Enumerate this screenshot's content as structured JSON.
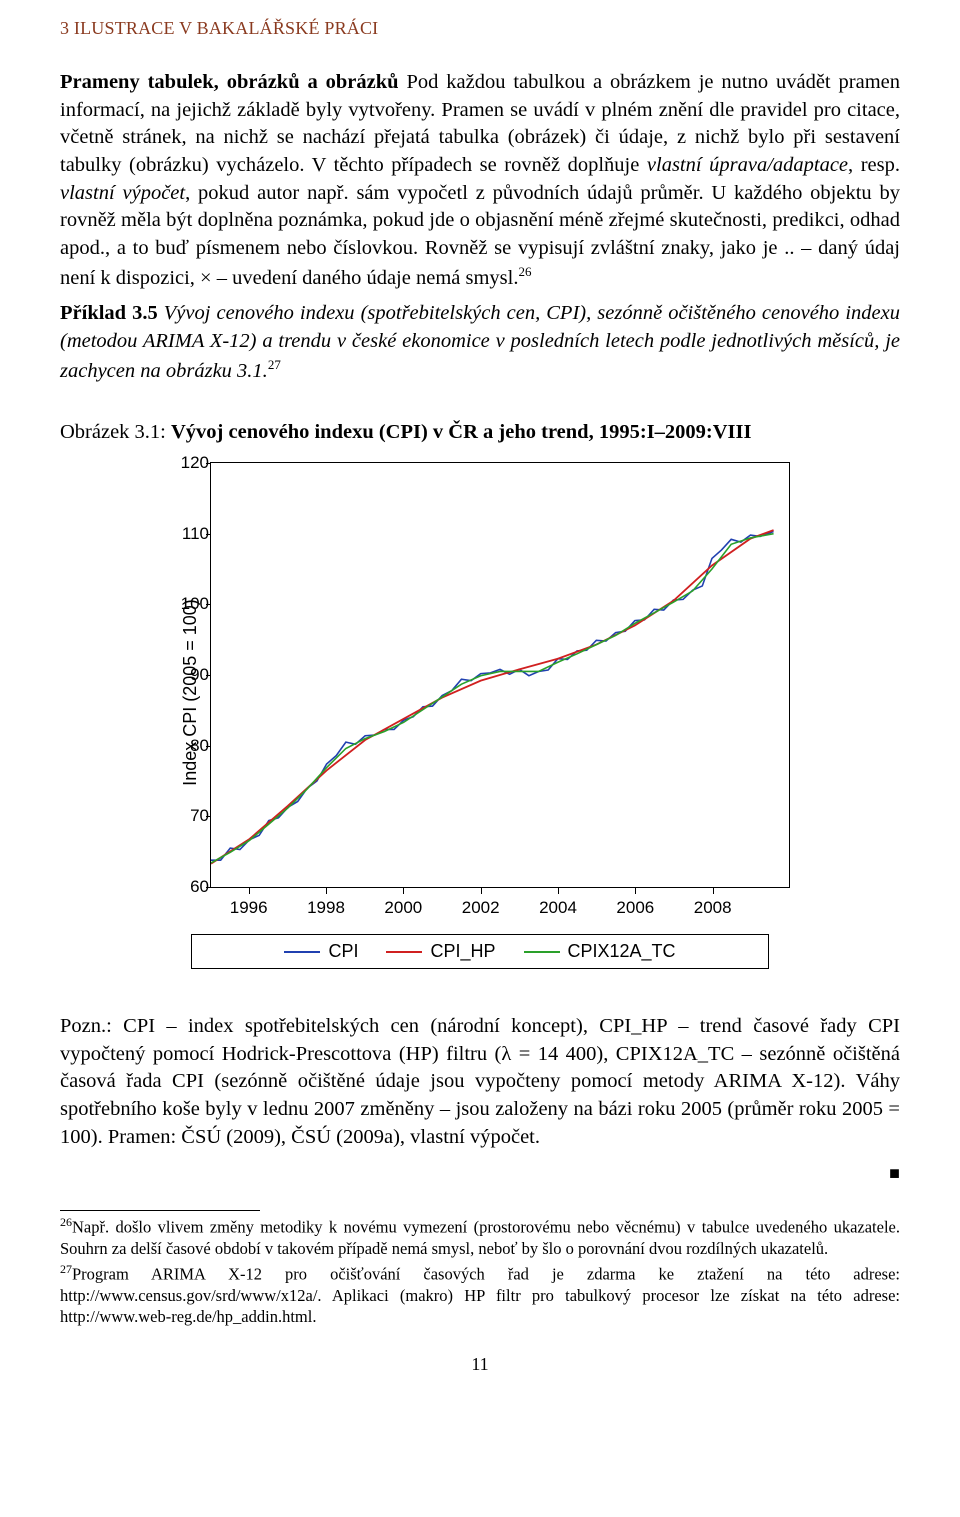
{
  "header": "3   ILUSTRACE V BAKALÁŘSKÉ PRÁCI",
  "para1": {
    "lead": "Prameny tabulek, obrázků a obrázků",
    "body1": "   Pod každou tabulkou a obrázkem je nutno uvádět pramen informací, na jejichž základě byly vytvořeny. Pramen se uvádí v plném znění dle pravidel pro citace, včetně stránek, na nichž se nachází přejatá tabulka (obrázek) či údaje, z nichž bylo při sestavení tabulky (obrázku) vycházelo. V těchto případech se rovněž doplňuje ",
    "i1": "vlastní úprava/adaptace",
    "body2": ", resp. ",
    "i2": "vlastní výpočet",
    "body3": ", pokud autor např. sám vypočetl z původních údajů průměr. U každého objektu by rovněž měla být doplněna poznámka, pokud jde o objasnění méně zřejmé skutečnosti, predikci, odhad apod., a to buď písmenem nebo číslovkou. Rovněž se vypisují zvláštní znaky, jako je .. – daný údaj není k dispozici, × – uvedení daného údaje nemá smysl.",
    "sup26": "26"
  },
  "priklad": {
    "lead": "Příklad 3.5",
    "body": " Vývoj cenového indexu (spotřebitelských cen, CPI), sezónně očištěného cenového indexu (metodou ARIMA X-12) a trendu v české ekonomice v posledních letech podle jednotlivých měsíců, je zachycen na obrázku 3.1.",
    "sup27": "27"
  },
  "figcap": {
    "pre": "Obrázek 3.1: ",
    "bold": "Vývoj cenového indexu (CPI) v ČR a jeho trend, 1995:I–2009:VIII"
  },
  "chart": {
    "ylabel": "Index CPI (2005 = 100)",
    "ylim": [
      60,
      120
    ],
    "ytick_step": 10,
    "yticks": [
      60,
      70,
      80,
      90,
      100,
      110,
      120
    ],
    "xlim": [
      1995,
      2010
    ],
    "xticks": [
      1996,
      1998,
      2000,
      2002,
      2004,
      2006,
      2008
    ],
    "series": [
      {
        "name": "CPI",
        "color": "#2040b0"
      },
      {
        "name": "CPI_HP",
        "color": "#d02020"
      },
      {
        "name": "CPIX12A_TC",
        "color": "#2aa02a"
      }
    ],
    "cpi": [
      [
        1995.0,
        63.5
      ],
      [
        1995.25,
        64.2
      ],
      [
        1995.5,
        65.0
      ],
      [
        1995.75,
        65.6
      ],
      [
        1996.0,
        66.5
      ],
      [
        1996.25,
        67.8
      ],
      [
        1996.5,
        69.0
      ],
      [
        1996.75,
        70.0
      ],
      [
        1997.0,
        71.0
      ],
      [
        1997.25,
        72.5
      ],
      [
        1997.5,
        73.8
      ],
      [
        1997.75,
        75.3
      ],
      [
        1998.0,
        77.0
      ],
      [
        1998.25,
        78.8
      ],
      [
        1998.5,
        80.0
      ],
      [
        1998.75,
        80.6
      ],
      [
        1999.0,
        81.2
      ],
      [
        1999.25,
        81.8
      ],
      [
        1999.5,
        82.0
      ],
      [
        1999.75,
        82.5
      ],
      [
        2000.0,
        83.2
      ],
      [
        2000.25,
        84.4
      ],
      [
        2000.5,
        85.3
      ],
      [
        2000.75,
        86.0
      ],
      [
        2001.0,
        86.8
      ],
      [
        2001.25,
        88.0
      ],
      [
        2001.5,
        89.0
      ],
      [
        2001.75,
        89.5
      ],
      [
        2002.0,
        90.0
      ],
      [
        2002.25,
        90.8
      ],
      [
        2002.5,
        90.5
      ],
      [
        2002.75,
        90.3
      ],
      [
        2003.0,
        90.4
      ],
      [
        2003.25,
        90.2
      ],
      [
        2003.5,
        90.3
      ],
      [
        2003.75,
        90.9
      ],
      [
        2004.0,
        92.0
      ],
      [
        2004.25,
        92.6
      ],
      [
        2004.5,
        93.2
      ],
      [
        2004.75,
        93.8
      ],
      [
        2005.0,
        94.5
      ],
      [
        2005.25,
        95.0
      ],
      [
        2005.5,
        95.7
      ],
      [
        2005.75,
        96.5
      ],
      [
        2006.0,
        97.5
      ],
      [
        2006.25,
        98.2
      ],
      [
        2006.5,
        99.0
      ],
      [
        2006.75,
        99.4
      ],
      [
        2007.0,
        100.2
      ],
      [
        2007.25,
        101.0
      ],
      [
        2007.5,
        101.8
      ],
      [
        2007.75,
        103.0
      ],
      [
        2008.0,
        106.0
      ],
      [
        2008.25,
        108.0
      ],
      [
        2008.5,
        109.0
      ],
      [
        2008.75,
        109.2
      ],
      [
        2009.0,
        109.5
      ],
      [
        2009.25,
        109.8
      ],
      [
        2009.6,
        110.0
      ]
    ],
    "cpi_jitter": [
      0.3,
      -0.4,
      0.5,
      -0.3,
      0.2,
      -0.5,
      0.4,
      -0.2,
      0.3,
      -0.4,
      0.2,
      -0.3,
      0.4,
      -0.2,
      0.5,
      -0.4,
      0.2,
      -0.3,
      0.3,
      -0.2,
      0.4,
      -0.3,
      0.2,
      -0.4,
      0.3,
      -0.2,
      0.4,
      -0.3,
      0.2,
      -0.5,
      0.3,
      -0.2,
      0.4,
      -0.3,
      0.2,
      -0.2,
      0.3,
      -0.4,
      0.2,
      -0.3,
      0.4,
      -0.2,
      0.3,
      -0.3,
      0.2,
      -0.4,
      0.3,
      -0.2,
      0.4,
      -0.3,
      0.2,
      -0.4,
      0.5,
      -0.3,
      0.2,
      -0.4,
      0.3,
      -0.2,
      0.3
    ],
    "hp": [
      [
        1995.0,
        63.3
      ],
      [
        1996.0,
        66.8
      ],
      [
        1997.0,
        71.5
      ],
      [
        1998.0,
        76.5
      ],
      [
        1999.0,
        80.8
      ],
      [
        2000.0,
        83.8
      ],
      [
        2001.0,
        86.8
      ],
      [
        2002.0,
        89.2
      ],
      [
        2003.0,
        90.8
      ],
      [
        2004.0,
        92.3
      ],
      [
        2005.0,
        94.3
      ],
      [
        2006.0,
        97.0
      ],
      [
        2007.0,
        100.5
      ],
      [
        2008.0,
        105.5
      ],
      [
        2009.0,
        109.3
      ],
      [
        2009.6,
        110.5
      ]
    ],
    "tc": [
      [
        1995.0,
        63.4
      ],
      [
        1995.5,
        64.9
      ],
      [
        1996.0,
        66.6
      ],
      [
        1996.5,
        68.9
      ],
      [
        1997.0,
        71.2
      ],
      [
        1997.5,
        73.9
      ],
      [
        1998.0,
        76.9
      ],
      [
        1998.5,
        79.6
      ],
      [
        1999.0,
        81.0
      ],
      [
        1999.5,
        82.0
      ],
      [
        2000.0,
        83.3
      ],
      [
        2000.5,
        85.1
      ],
      [
        2001.0,
        86.9
      ],
      [
        2001.5,
        88.7
      ],
      [
        2002.0,
        89.9
      ],
      [
        2002.5,
        90.5
      ],
      [
        2003.0,
        90.5
      ],
      [
        2003.5,
        90.5
      ],
      [
        2004.0,
        91.8
      ],
      [
        2004.5,
        93.0
      ],
      [
        2005.0,
        94.3
      ],
      [
        2005.5,
        95.6
      ],
      [
        2006.0,
        97.3
      ],
      [
        2006.5,
        98.8
      ],
      [
        2007.0,
        100.3
      ],
      [
        2007.5,
        101.9
      ],
      [
        2008.0,
        105.0
      ],
      [
        2008.5,
        108.5
      ],
      [
        2009.0,
        109.4
      ],
      [
        2009.6,
        110.0
      ]
    ]
  },
  "pozn": "Pozn.: CPI – index spotřebitelských cen (národní koncept), CPI_HP – trend časové řady CPI vypočtený pomocí Hodrick-Prescottova (HP) filtru (λ = 14 400), CPIX12A_TC – sezónně očištěná časová řada CPI (sezónně očištěné údaje jsou vypočteny pomocí metody ARIMA X-12). Váhy spotřebního koše byly v lednu 2007 změněny – jsou založeny na bázi roku 2005 (průměr roku 2005 = 100). Pramen: ČSÚ (2009), ČSÚ (2009a), vlastní výpočet.",
  "endmark": "■",
  "fn26": {
    "sup": "26",
    "text": "Např. došlo vlivem změny metodiky k novému vymezení (prostorovému nebo věcnému) v tabulce uvedeného ukazatele. Souhrn za delší časové období v takovém případě nemá smysl, neboť by šlo o porovnání dvou rozdílných ukazatelů."
  },
  "fn27": {
    "sup": "27",
    "text": "Program ARIMA X-12 pro očišťování časových řad je zdarma ke ztažení na této adrese: http://www.census.gov/srd/www/x12a/. Aplikaci (makro) HP filtr pro tabulkový procesor lze získat na této adrese: http://www.web-reg.de/hp_addin.html."
  },
  "pagenum": "11"
}
